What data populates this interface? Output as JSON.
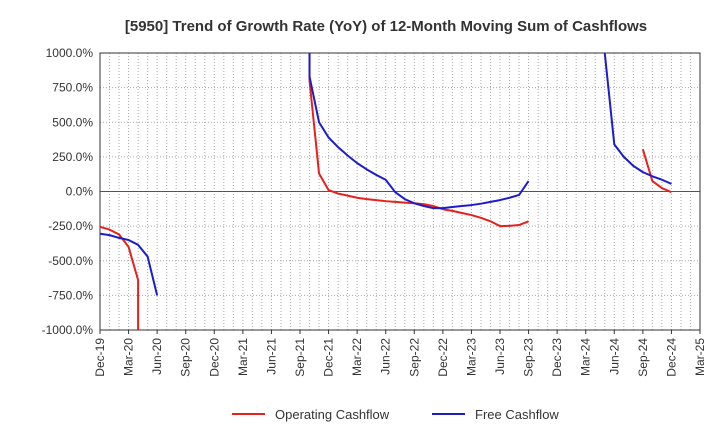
{
  "chart_data": {
    "type": "line",
    "title": "[5950]  Trend of Growth Rate (YoY) of 12-Month Moving Sum of Cashflows",
    "xlabel": "",
    "ylabel": "",
    "ylim": [
      -1000,
      1000
    ],
    "y_ticks": [
      1000,
      750,
      500,
      250,
      0,
      -250,
      -500,
      -750,
      -1000
    ],
    "y_tick_labels": [
      "1000.0%",
      "750.0%",
      "500.0%",
      "250.0%",
      "0.0%",
      "-250.0%",
      "-500.0%",
      "-750.0%",
      "-1000.0%"
    ],
    "x_range": [
      "2019-12",
      "2025-03"
    ],
    "x_tick_labels": [
      "Dec-19",
      "Mar-20",
      "Jun-20",
      "Sep-20",
      "Dec-20",
      "Mar-21",
      "Jun-21",
      "Sep-21",
      "Dec-21",
      "Mar-22",
      "Jun-22",
      "Sep-22",
      "Dec-22",
      "Mar-23",
      "Jun-23",
      "Sep-23",
      "Dec-23",
      "Mar-24",
      "Jun-24",
      "Sep-24",
      "Dec-24",
      "Mar-25"
    ],
    "grid": true,
    "legend_position": "bottom",
    "series": [
      {
        "name": "Operating Cashflow",
        "color": "#e8201c",
        "segments": [
          [
            [
              "2019-12",
              -255
            ],
            [
              "2020-01",
              -275
            ],
            [
              "2020-02",
              -310
            ],
            [
              "2020-03",
              -400
            ],
            [
              "2020-04",
              -640
            ],
            [
              "2020-04",
              -1000
            ]
          ],
          [
            [
              "2021-10",
              1000
            ],
            [
              "2021-10",
              800
            ],
            [
              "2021-11",
              130
            ],
            [
              "2021-12",
              10
            ],
            [
              "2022-01",
              -15
            ],
            [
              "2022-02",
              -30
            ],
            [
              "2022-03",
              -45
            ],
            [
              "2022-04",
              -55
            ],
            [
              "2022-05",
              -62
            ],
            [
              "2022-06",
              -70
            ],
            [
              "2022-07",
              -75
            ],
            [
              "2022-08",
              -80
            ],
            [
              "2022-09",
              -85
            ],
            [
              "2022-10",
              -92
            ],
            [
              "2022-11",
              -105
            ],
            [
              "2022-12",
              -128
            ],
            [
              "2023-01",
              -140
            ],
            [
              "2023-02",
              -155
            ],
            [
              "2023-03",
              -170
            ],
            [
              "2023-04",
              -190
            ],
            [
              "2023-05",
              -215
            ],
            [
              "2023-06",
              -250
            ],
            [
              "2023-07",
              -248
            ],
            [
              "2023-08",
              -242
            ],
            [
              "2023-09",
              -215
            ]
          ],
          [
            [
              "2024-09",
              305
            ],
            [
              "2024-10",
              75
            ],
            [
              "2024-11",
              25
            ],
            [
              "2024-12",
              -5
            ]
          ]
        ]
      },
      {
        "name": "Free Cashflow",
        "color": "#1c1ccc",
        "segments": [
          [
            [
              "2019-12",
              -305
            ],
            [
              "2020-01",
              -315
            ],
            [
              "2020-02",
              -335
            ],
            [
              "2020-03",
              -350
            ],
            [
              "2020-04",
              -385
            ],
            [
              "2020-05",
              -470
            ],
            [
              "2020-06",
              -750
            ]
          ],
          [
            [
              "2021-10",
              1000
            ],
            [
              "2021-10",
              830
            ],
            [
              "2021-11",
              500
            ],
            [
              "2021-12",
              390
            ],
            [
              "2022-01",
              320
            ],
            [
              "2022-02",
              260
            ],
            [
              "2022-03",
              205
            ],
            [
              "2022-04",
              160
            ],
            [
              "2022-05",
              120
            ],
            [
              "2022-06",
              85
            ],
            [
              "2022-07",
              -5
            ],
            [
              "2022-08",
              -55
            ],
            [
              "2022-09",
              -85
            ],
            [
              "2022-10",
              -105
            ],
            [
              "2022-11",
              -120
            ],
            [
              "2022-12",
              -120
            ],
            [
              "2023-01",
              -112
            ],
            [
              "2023-02",
              -105
            ],
            [
              "2023-03",
              -98
            ],
            [
              "2023-04",
              -88
            ],
            [
              "2023-05",
              -75
            ],
            [
              "2023-06",
              -62
            ],
            [
              "2023-07",
              -45
            ],
            [
              "2023-08",
              -25
            ],
            [
              "2023-09",
              75
            ]
          ],
          [
            [
              "2024-05",
              1000
            ],
            [
              "2024-06",
              340
            ],
            [
              "2024-07",
              250
            ],
            [
              "2024-08",
              185
            ],
            [
              "2024-09",
              140
            ],
            [
              "2024-10",
              110
            ],
            [
              "2024-11",
              85
            ],
            [
              "2024-12",
              55
            ]
          ]
        ]
      }
    ]
  }
}
